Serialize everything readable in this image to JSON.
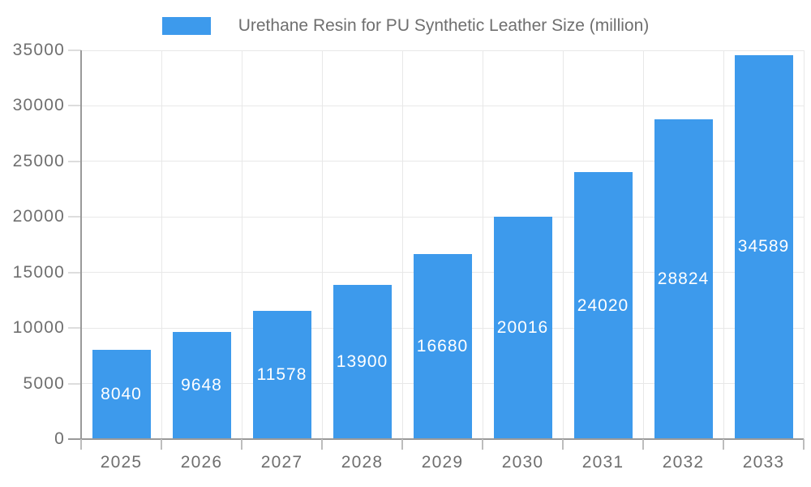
{
  "chart_data": {
    "type": "bar",
    "title": "Urethane Resin for PU Synthetic Leather Size (million)",
    "legend_position": "top",
    "categories": [
      "2025",
      "2026",
      "2027",
      "2028",
      "2029",
      "2030",
      "2031",
      "2032",
      "2033"
    ],
    "values": [
      8040,
      9648,
      11578,
      13900,
      16680,
      20016,
      24020,
      28824,
      34589
    ],
    "xlabel": "",
    "ylabel": "",
    "ylim": [
      0,
      35000
    ],
    "ytick_step": 5000,
    "yticks": [
      "0",
      "5000",
      "10000",
      "15000",
      "20000",
      "25000",
      "30000",
      "35000"
    ],
    "grid": true,
    "colors": {
      "bar": "#3d9aec",
      "axis_text": "#6f6f6f",
      "gridline": "#e8e8e8",
      "axis_line": "#9a9a9a",
      "bar_label": "#ffffff"
    }
  }
}
